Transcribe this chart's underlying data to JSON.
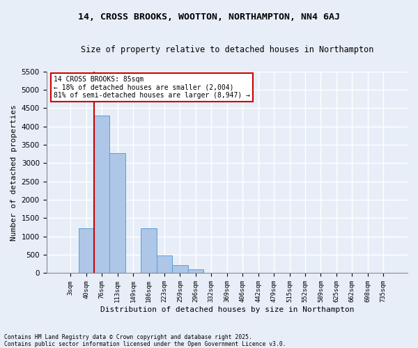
{
  "title1": "14, CROSS BROOKS, WOOTTON, NORTHAMPTON, NN4 6AJ",
  "title2": "Size of property relative to detached houses in Northampton",
  "xlabel": "Distribution of detached houses by size in Northampton",
  "ylabel": "Number of detached properties",
  "categories": [
    "3sqm",
    "40sqm",
    "76sqm",
    "113sqm",
    "149sqm",
    "186sqm",
    "223sqm",
    "259sqm",
    "296sqm",
    "332sqm",
    "369sqm",
    "406sqm",
    "442sqm",
    "479sqm",
    "515sqm",
    "552sqm",
    "589sqm",
    "625sqm",
    "662sqm",
    "698sqm",
    "735sqm"
  ],
  "bar_values": [
    0,
    1220,
    4300,
    3270,
    0,
    1230,
    490,
    220,
    110,
    0,
    0,
    0,
    0,
    0,
    0,
    0,
    0,
    0,
    0,
    0,
    0
  ],
  "bar_color": "#aec6e8",
  "bar_edge_color": "#5a9fd4",
  "fig_facecolor": "#e8eef8",
  "ax_facecolor": "#e8eef8",
  "grid_color": "#ffffff",
  "vline_color": "#cc0000",
  "vline_x_index": 2,
  "annotation_text": "14 CROSS BROOKS: 85sqm\n← 18% of detached houses are smaller (2,004)\n81% of semi-detached houses are larger (8,947) →",
  "annotation_box_edgecolor": "#cc0000",
  "ylim": [
    0,
    5500
  ],
  "yticks": [
    0,
    500,
    1000,
    1500,
    2000,
    2500,
    3000,
    3500,
    4000,
    4500,
    5000,
    5500
  ],
  "footnote1": "Contains HM Land Registry data © Crown copyright and database right 2025.",
  "footnote2": "Contains public sector information licensed under the Open Government Licence v3.0."
}
